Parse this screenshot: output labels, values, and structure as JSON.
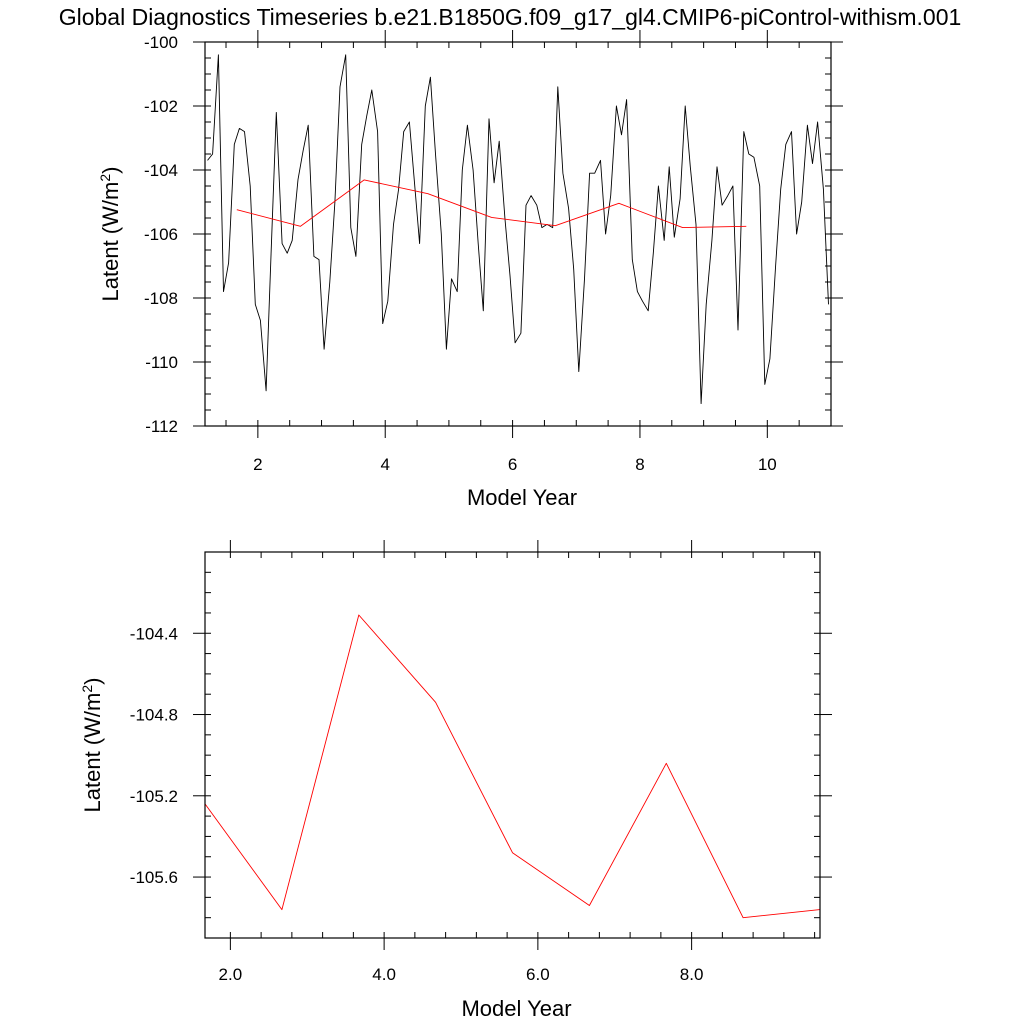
{
  "title": "Global Diagnostics Timeseries b.e21.B1850G.f09_g17_gl4.CMIP6-piControl-withism.001",
  "chart_data": [
    {
      "type": "line",
      "xlabel": "Model Year",
      "ylabel_text": "Latent (W/m",
      "ylabel_sup": "2",
      "ylabel_close": ")",
      "xlim": [
        1.17,
        11.0
      ],
      "ylim": [
        -112,
        -100
      ],
      "xticks": [
        2,
        4,
        6,
        8,
        10
      ],
      "xtick_labels": [
        "2",
        "4",
        "6",
        "8",
        "10"
      ],
      "yticks": [
        -100,
        -102,
        -104,
        -106,
        -108,
        -110,
        -112
      ],
      "ytick_labels": [
        "-100",
        "-102",
        "-104",
        "-106",
        "-108",
        "-110",
        "-112"
      ],
      "series": [
        {
          "color": "#000000",
          "x": [
            1.21,
            1.29,
            1.38,
            1.46,
            1.54,
            1.63,
            1.71,
            1.79,
            1.88,
            1.96,
            2.04,
            2.13,
            2.21,
            2.29,
            2.38,
            2.46,
            2.54,
            2.63,
            2.71,
            2.79,
            2.88,
            2.96,
            3.04,
            3.13,
            3.21,
            3.29,
            3.38,
            3.46,
            3.54,
            3.63,
            3.71,
            3.79,
            3.88,
            3.96,
            4.04,
            4.13,
            4.21,
            4.29,
            4.38,
            4.46,
            4.54,
            4.63,
            4.71,
            4.79,
            4.88,
            4.96,
            5.04,
            5.13,
            5.21,
            5.29,
            5.38,
            5.46,
            5.54,
            5.63,
            5.71,
            5.79,
            5.88,
            5.96,
            6.04,
            6.13,
            6.21,
            6.29,
            6.38,
            6.46,
            6.54,
            6.63,
            6.71,
            6.79,
            6.88,
            6.96,
            7.04,
            7.13,
            7.21,
            7.29,
            7.38,
            7.46,
            7.54,
            7.63,
            7.71,
            7.79,
            7.88,
            7.96,
            8.04,
            8.13,
            8.21,
            8.29,
            8.38,
            8.46,
            8.54,
            8.63,
            8.71,
            8.79,
            8.88,
            8.96,
            9.04,
            9.13,
            9.21,
            9.29,
            9.38,
            9.46,
            9.54,
            9.63,
            9.71,
            9.79,
            9.88,
            9.96,
            10.04,
            10.13,
            10.21,
            10.29,
            10.38,
            10.46,
            10.54,
            10.63,
            10.71,
            10.79,
            10.88,
            10.96
          ],
          "values": [
            -103.7,
            -103.5,
            -100.4,
            -107.8,
            -106.9,
            -103.2,
            -102.7,
            -102.8,
            -104.5,
            -108.2,
            -108.7,
            -110.9,
            -106.5,
            -102.2,
            -106.3,
            -106.6,
            -106.2,
            -104.3,
            -103.4,
            -102.6,
            -106.7,
            -106.8,
            -109.6,
            -107.5,
            -105.0,
            -101.4,
            -100.4,
            -105.8,
            -106.7,
            -103.2,
            -102.3,
            -101.5,
            -102.8,
            -108.8,
            -108.1,
            -105.7,
            -104.6,
            -102.8,
            -102.5,
            -104.4,
            -106.3,
            -102.0,
            -101.1,
            -103.5,
            -106.0,
            -109.6,
            -107.4,
            -107.8,
            -104.0,
            -102.6,
            -104.0,
            -106.3,
            -108.4,
            -102.4,
            -104.4,
            -103.1,
            -105.5,
            -107.3,
            -109.4,
            -109.1,
            -105.1,
            -104.8,
            -105.1,
            -105.8,
            -105.7,
            -105.8,
            -101.4,
            -104.1,
            -105.2,
            -107.1,
            -110.3,
            -107.4,
            -104.1,
            -104.1,
            -103.7,
            -106.0,
            -104.8,
            -102.0,
            -102.9,
            -101.8,
            -106.8,
            -107.8,
            -108.1,
            -108.4,
            -106.6,
            -104.5,
            -106.2,
            -103.9,
            -106.1,
            -104.9,
            -102.0,
            -103.9,
            -105.7,
            -111.3,
            -108.2,
            -106.2,
            -103.9,
            -105.1,
            -104.8,
            -104.5,
            -109.0,
            -102.8,
            -103.5,
            -103.6,
            -104.5,
            -110.7,
            -109.9,
            -107.0,
            -104.6,
            -103.2,
            -102.8,
            -106.0,
            -105.0,
            -102.6,
            -103.8,
            -102.5,
            -104.6,
            -108.2
          ]
        },
        {
          "color": "#ff0000",
          "x": [
            1.67,
            2.67,
            3.67,
            4.67,
            5.67,
            6.67,
            7.67,
            8.67,
            9.67
          ],
          "values": [
            -105.24,
            -105.76,
            -104.31,
            -104.74,
            -105.48,
            -105.74,
            -105.04,
            -105.8,
            -105.76
          ]
        }
      ]
    },
    {
      "type": "line",
      "xlabel": "Model Year",
      "ylabel_text": "Latent (W/m",
      "ylabel_sup": "2",
      "ylabel_close": ")",
      "xlim": [
        1.67,
        9.67
      ],
      "ylim": [
        -105.9,
        -104.0
      ],
      "xticks": [
        2.0,
        4.0,
        6.0,
        8.0
      ],
      "xtick_labels": [
        "2.0",
        "4.0",
        "6.0",
        "8.0"
      ],
      "yticks": [
        -104.4,
        -104.8,
        -105.2,
        -105.6
      ],
      "ytick_labels": [
        "-104.4",
        "-104.8",
        "-105.2",
        "-105.6"
      ],
      "series": [
        {
          "color": "#ff0000",
          "x": [
            1.67,
            2.67,
            3.67,
            4.67,
            5.67,
            6.67,
            7.67,
            8.67,
            9.67
          ],
          "values": [
            -105.24,
            -105.76,
            -104.31,
            -104.74,
            -105.48,
            -105.74,
            -105.04,
            -105.8,
            -105.76
          ]
        }
      ]
    }
  ]
}
